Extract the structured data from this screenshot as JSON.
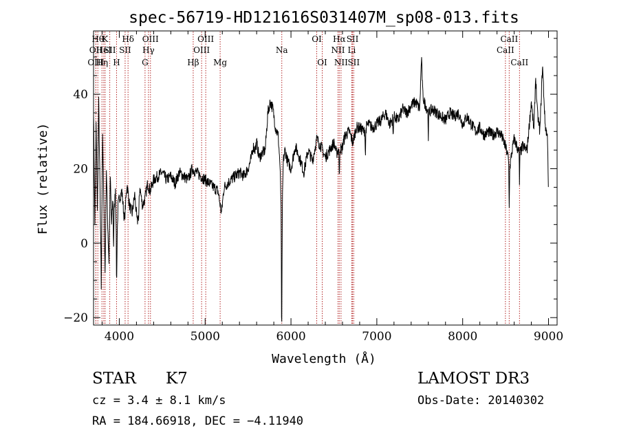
{
  "chart_data": {
    "type": "line",
    "title": "spec-56719-HD121616S031407M_sp08-013.fits",
    "xlabel": "Wavelength (Å)",
    "ylabel": "Flux (relative)",
    "xlim": [
      3700,
      9100
    ],
    "ylim": [
      -22,
      57
    ],
    "xticks": [
      4000,
      5000,
      6000,
      7000,
      8000,
      9000
    ],
    "yticks": [
      -20,
      0,
      20,
      40
    ],
    "xtick_labels": [
      "4000",
      "5000",
      "6000",
      "7000",
      "8000",
      "9000"
    ],
    "ytick_labels": [
      "−20",
      "0",
      "20",
      "40"
    ],
    "grid": false,
    "line_color": "#000000",
    "marker_color": "#b22222",
    "spectrum": {
      "x": [
        3700,
        3715,
        3730,
        3745,
        3760,
        3775,
        3790,
        3805,
        3820,
        3835,
        3850,
        3865,
        3880,
        3895,
        3910,
        3925,
        3940,
        3955,
        3970,
        3985,
        4000,
        4030,
        4060,
        4090,
        4120,
        4150,
        4180,
        4210,
        4240,
        4270,
        4300,
        4330,
        4360,
        4400,
        4450,
        4500,
        4550,
        4600,
        4650,
        4700,
        4750,
        4800,
        4850,
        4900,
        4950,
        5000,
        5050,
        5100,
        5150,
        5170,
        5190,
        5220,
        5260,
        5300,
        5350,
        5400,
        5450,
        5500,
        5540,
        5560,
        5580,
        5600,
        5630,
        5660,
        5700,
        5730,
        5760,
        5790,
        5820,
        5850,
        5870,
        5885,
        5893,
        5900,
        5910,
        5930,
        5960,
        6000,
        6050,
        6100,
        6150,
        6200,
        6250,
        6300,
        6350,
        6400,
        6450,
        6500,
        6530,
        6563,
        6590,
        6630,
        6680,
        6720,
        6760,
        6800,
        6850,
        6900,
        6950,
        7000,
        7050,
        7100,
        7150,
        7200,
        7250,
        7300,
        7350,
        7400,
        7450,
        7500,
        7520,
        7535,
        7550,
        7570,
        7600,
        7650,
        7700,
        7750,
        7800,
        7850,
        7900,
        7950,
        8000,
        8050,
        8100,
        8150,
        8200,
        8250,
        8300,
        8350,
        8400,
        8450,
        8498,
        8530,
        8542,
        8570,
        8600,
        8662,
        8700,
        8750,
        8800,
        8830,
        8850,
        8870,
        8900,
        8930,
        8960,
        8990,
        9000
      ],
      "y": [
        36,
        5,
        32,
        8,
        38,
        15,
        -12,
        30,
        10,
        -8,
        20,
        5,
        -5,
        18,
        5,
        12,
        8,
        15,
        -3,
        10,
        12,
        14,
        6,
        16,
        10,
        8,
        13,
        5,
        15,
        10,
        12,
        16,
        14,
        17,
        18,
        19,
        17,
        18,
        16,
        19,
        18,
        17,
        20,
        19,
        18,
        17,
        16,
        15,
        14,
        11,
        8,
        15,
        16,
        17,
        18,
        19,
        18,
        20,
        23,
        26,
        25,
        27,
        23,
        24,
        25,
        35,
        38,
        36,
        31,
        29,
        22,
        10,
        -15,
        10,
        22,
        25,
        22,
        20,
        26,
        23,
        19,
        25,
        22,
        28,
        26,
        23,
        25,
        27,
        24,
        26,
        25,
        29,
        30,
        27,
        31,
        31,
        30,
        32,
        31,
        32,
        33,
        35,
        32,
        34,
        33,
        36,
        35,
        37,
        38,
        36,
        50,
        40,
        38,
        37,
        35,
        36,
        35,
        34,
        33,
        35,
        34,
        35,
        32,
        34,
        32,
        30,
        31,
        29,
        30,
        29,
        30,
        29,
        26,
        23,
        19,
        24,
        28,
        24,
        26,
        25,
        38,
        30,
        45,
        35,
        30,
        48,
        32,
        28,
        12
      ],
      "dips": [
        {
          "x": 3933,
          "depth": 12
        },
        {
          "x": 3968,
          "depth": 10
        },
        {
          "x": 4226,
          "depth": 5
        },
        {
          "x": 5890,
          "depth": 15
        },
        {
          "x": 6563,
          "depth": 10
        },
        {
          "x": 6867,
          "depth": 8
        },
        {
          "x": 7190,
          "depth": 6
        },
        {
          "x": 7600,
          "depth": 6
        },
        {
          "x": 8542,
          "depth": 10
        },
        {
          "x": 8662,
          "depth": 8
        }
      ]
    },
    "lines": [
      {
        "x": 3750,
        "label": "Hθ",
        "row": 0
      },
      {
        "x": 3727,
        "label": "OII",
        "row": 1
      },
      {
        "x": 3727,
        "label": "OIII",
        "row": 2
      },
      {
        "x": 3798,
        "label": "Hη",
        "row": 2
      },
      {
        "x": 3819,
        "label": "HeI",
        "row": 1
      },
      {
        "x": 3835,
        "label": "K",
        "row": 0
      },
      {
        "x": 3889,
        "label": "SII",
        "row": 1
      },
      {
        "x": 3968,
        "label": "H",
        "row": 2
      },
      {
        "x": 4102,
        "label": "Hδ",
        "row": 0
      },
      {
        "x": 4068,
        "label": "SII",
        "row": 1
      },
      {
        "x": 4300,
        "label": "G",
        "row": 2
      },
      {
        "x": 4340,
        "label": "Hγ",
        "row": 1
      },
      {
        "x": 4363,
        "label": "OIII",
        "row": 0
      },
      {
        "x": 4861,
        "label": "Hβ",
        "row": 2
      },
      {
        "x": 4959,
        "label": "OIII",
        "row": 1
      },
      {
        "x": 5007,
        "label": "OIII",
        "row": 0
      },
      {
        "x": 5175,
        "label": "Mg",
        "row": 2
      },
      {
        "x": 5893,
        "label": "Na",
        "row": 1
      },
      {
        "x": 6300,
        "label": "OI",
        "row": 0
      },
      {
        "x": 6364,
        "label": "OI",
        "row": 2
      },
      {
        "x": 6548,
        "label": "NII",
        "row": 1
      },
      {
        "x": 6563,
        "label": "Hα",
        "row": 0
      },
      {
        "x": 6583,
        "label": "NII",
        "row": 2
      },
      {
        "x": 6708,
        "label": "Li",
        "row": 1
      },
      {
        "x": 6717,
        "label": "SII",
        "row": 0
      },
      {
        "x": 6731,
        "label": "SII",
        "row": 2
      },
      {
        "x": 8498,
        "label": "CaII",
        "row": 1
      },
      {
        "x": 8542,
        "label": "CaII",
        "row": 0
      },
      {
        "x": 8662,
        "label": "CaII",
        "row": 2
      }
    ]
  },
  "info": {
    "class_label": "STAR",
    "subclass_label": "K7",
    "cz_text": "cz = 3.4 ± 8.1 km/s",
    "radec_text": "RA = 184.66918, DEC =  −4.11940",
    "survey_label": "LAMOST DR3",
    "obsdate_text": "Obs-Date: 20140302"
  }
}
